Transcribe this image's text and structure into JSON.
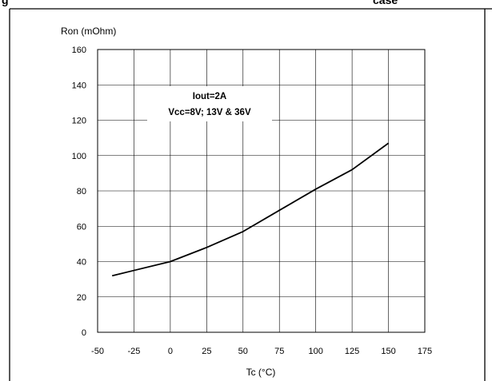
{
  "header": {
    "left_fragment": "g",
    "right_fragment": "case"
  },
  "chart_data": {
    "type": "line",
    "xlabel": "Tc (°C)",
    "ylabel": "Ron (mOhm)",
    "xlim": [
      -50,
      175
    ],
    "ylim": [
      0,
      160
    ],
    "xticks": [
      -50,
      -25,
      0,
      25,
      50,
      75,
      100,
      125,
      150,
      175
    ],
    "yticks": [
      0,
      20,
      40,
      60,
      80,
      100,
      120,
      140,
      160
    ],
    "grid": true,
    "annotation": [
      "Iout=2A",
      "Vcc=8V; 13V & 36V"
    ],
    "series": [
      {
        "x": [
          -40,
          -25,
          0,
          25,
          50,
          75,
          100,
          125,
          150
        ],
        "y": [
          32,
          35,
          40,
          48,
          57,
          69,
          81,
          92,
          107
        ]
      }
    ]
  }
}
